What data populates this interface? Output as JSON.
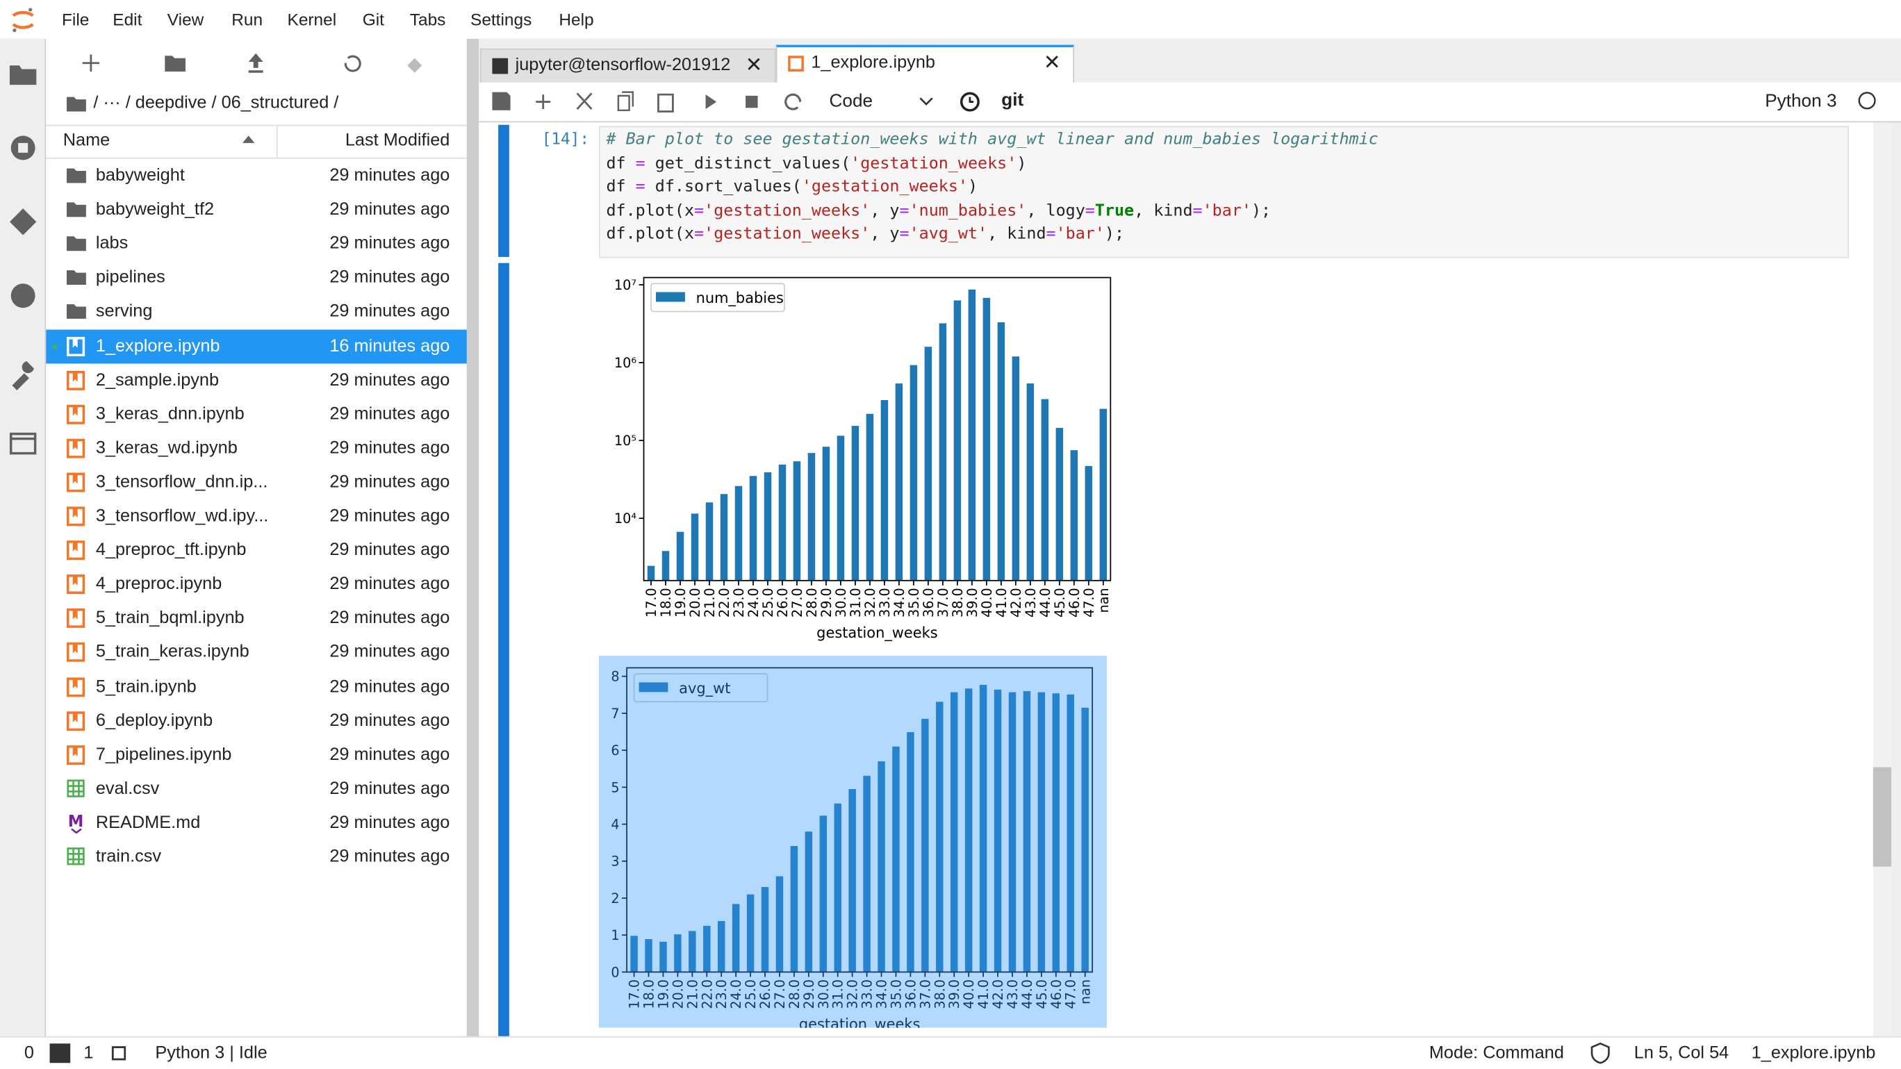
{
  "menu": [
    "File",
    "Edit",
    "View",
    "Run",
    "Kernel",
    "Git",
    "Tabs",
    "Settings",
    "Help"
  ],
  "file_browser": {
    "path": "/ ··· / deepdive / 06_structured /",
    "columns": {
      "name": "Name",
      "modified": "Last Modified"
    },
    "files": [
      {
        "name": "babyweight",
        "modified": "29 minutes ago"
      },
      {
        "name": "babyweight_tf2",
        "modified": "29 minutes ago"
      },
      {
        "name": "labs",
        "modified": "29 minutes ago"
      },
      {
        "name": "pipelines",
        "modified": "29 minutes ago"
      },
      {
        "name": "serving",
        "modified": "29 minutes ago"
      },
      {
        "name": "1_explore.ipynb",
        "modified": "16 minutes ago",
        "selected": true
      },
      {
        "name": "2_sample.ipynb",
        "modified": "29 minutes ago"
      },
      {
        "name": "3_keras_dnn.ipynb",
        "modified": "29 minutes ago"
      },
      {
        "name": "3_keras_wd.ipynb",
        "modified": "29 minutes ago"
      },
      {
        "name": "3_tensorflow_dnn.ip...",
        "modified": "29 minutes ago"
      },
      {
        "name": "3_tensorflow_wd.ipy...",
        "modified": "29 minutes ago"
      },
      {
        "name": "4_preproc_tft.ipynb",
        "modified": "29 minutes ago"
      },
      {
        "name": "4_preproc.ipynb",
        "modified": "29 minutes ago"
      },
      {
        "name": "5_train_bqml.ipynb",
        "modified": "29 minutes ago"
      },
      {
        "name": "5_train_keras.ipynb",
        "modified": "29 minutes ago"
      },
      {
        "name": "5_train.ipynb",
        "modified": "29 minutes ago"
      },
      {
        "name": "6_deploy.ipynb",
        "modified": "29 minutes ago"
      },
      {
        "name": "7_pipelines.ipynb",
        "modified": "29 minutes ago"
      },
      {
        "name": "eval.csv",
        "modified": "29 minutes ago"
      },
      {
        "name": "README.md",
        "modified": "29 minutes ago"
      },
      {
        "name": "train.csv",
        "modified": "29 minutes ago"
      }
    ]
  },
  "tabs": [
    {
      "title": "jupyter@tensorflow-201912"
    },
    {
      "title": "1_explore.ipynb",
      "active": true
    }
  ],
  "toolbar": {
    "cell_type": "Code",
    "git": "git",
    "kernel": "Python 3"
  },
  "cell": {
    "prompt": "[14]:",
    "code": [
      "# Bar plot to see gestation_weeks with avg_wt linear and num_babies logarithmic",
      "df = get_distinct_values('gestation_weeks')",
      "df = df.sort_values('gestation_weeks')",
      "df.plot(x='gestation_weeks', y='num_babies', logy=True, kind='bar');",
      "df.plot(x='gestation_weeks', y='avg_wt', kind='bar');"
    ]
  },
  "status": {
    "terminals": "0",
    "kernels": "1",
    "kernel_state": "Python 3 | Idle",
    "mode": "Mode: Command",
    "position": "Ln 5, Col 54",
    "file": "1_explore.ipynb"
  },
  "chart_data": [
    {
      "type": "bar",
      "x_label": "gestation_weeks",
      "log_scale": true,
      "legend": "upper left",
      "selected": false,
      "categories": [
        "17.0",
        "18.0",
        "19.0",
        "20.0",
        "21.0",
        "22.0",
        "23.0",
        "24.0",
        "25.0",
        "26.0",
        "27.0",
        "28.0",
        "29.0",
        "30.0",
        "31.0",
        "32.0",
        "33.0",
        "34.0",
        "35.0",
        "36.0",
        "37.0",
        "38.0",
        "39.0",
        "40.0",
        "41.0",
        "42.0",
        "43.0",
        "44.0",
        "45.0",
        "46.0",
        "47.0",
        "nan"
      ],
      "series": [
        {
          "name": "num_babies",
          "color": "#1f77b4",
          "values": [
            2450,
            3800,
            6700,
            11500,
            16000,
            20500,
            26000,
            35000,
            39000,
            49000,
            54000,
            69000,
            83000,
            115000,
            154000,
            220000,
            330000,
            540000,
            930000,
            1600000,
            3200000,
            6300000,
            8700000,
            6800000,
            3300000,
            1200000,
            540000,
            340000,
            145000,
            75000,
            47000,
            255000
          ]
        }
      ],
      "ylim": [
        1585,
        12400000
      ],
      "yticks": [
        {
          "value": 10000,
          "label": "10⁴"
        },
        {
          "value": 100000,
          "label": "10⁵"
        },
        {
          "value": 1000000,
          "label": "10⁶"
        },
        {
          "value": 10000000,
          "label": "10⁷"
        }
      ]
    },
    {
      "type": "bar",
      "x_label": "gestation_weeks",
      "log_scale": false,
      "legend": "upper left",
      "selected": true,
      "categories": [
        "17.0",
        "18.0",
        "19.0",
        "20.0",
        "21.0",
        "22.0",
        "23.0",
        "24.0",
        "25.0",
        "26.0",
        "27.0",
        "28.0",
        "29.0",
        "30.0",
        "31.0",
        "32.0",
        "33.0",
        "34.0",
        "35.0",
        "36.0",
        "37.0",
        "38.0",
        "39.0",
        "40.0",
        "41.0",
        "42.0",
        "43.0",
        "44.0",
        "45.0",
        "46.0",
        "47.0",
        "nan"
      ],
      "series": [
        {
          "name": "avg_wt",
          "color": "#1f77b4",
          "values": [
            0.98,
            0.89,
            0.82,
            1.02,
            1.11,
            1.25,
            1.38,
            1.84,
            2.1,
            2.3,
            2.59,
            3.41,
            3.8,
            4.23,
            4.56,
            4.95,
            5.31,
            5.7,
            6.1,
            6.49,
            6.85,
            7.31,
            7.57,
            7.67,
            7.77,
            7.64,
            7.57,
            7.6,
            7.57,
            7.54,
            7.51,
            7.15
          ]
        }
      ],
      "ylim": [
        0,
        8.23
      ],
      "yticks": [
        0,
        1,
        2,
        3,
        4,
        5,
        6,
        7,
        8
      ]
    }
  ]
}
